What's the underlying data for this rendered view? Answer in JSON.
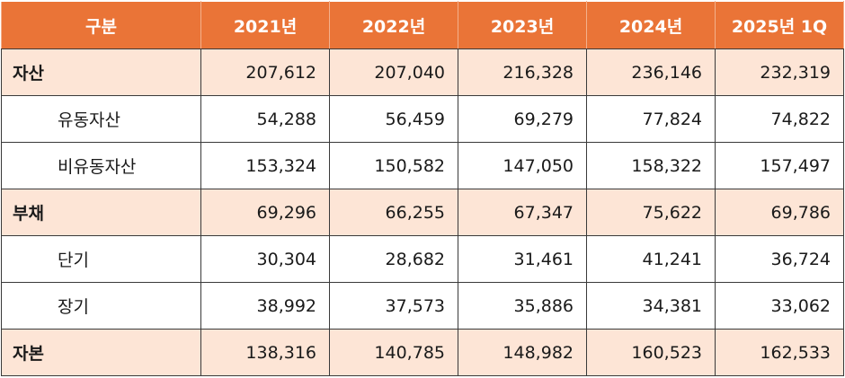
{
  "table": {
    "headers": [
      "구분",
      "2021년",
      "2022년",
      "2023년",
      "2024년",
      "2025년 1Q"
    ],
    "rows": [
      {
        "label": "자산",
        "type": "major",
        "values": [
          "207,612",
          "207,040",
          "216,328",
          "236,146",
          "232,319"
        ]
      },
      {
        "label": "유동자산",
        "type": "sub",
        "values": [
          "54,288",
          "56,459",
          "69,279",
          "77,824",
          "74,822"
        ]
      },
      {
        "label": "비유동자산",
        "type": "sub",
        "values": [
          "153,324",
          "150,582",
          "147,050",
          "158,322",
          "157,497"
        ]
      },
      {
        "label": "부채",
        "type": "major",
        "values": [
          "69,296",
          "66,255",
          "67,347",
          "75,622",
          "69,786"
        ]
      },
      {
        "label": "단기",
        "type": "sub",
        "values": [
          "30,304",
          "28,682",
          "31,461",
          "41,241",
          "36,724"
        ]
      },
      {
        "label": "장기",
        "type": "sub",
        "values": [
          "38,992",
          "37,573",
          "35,886",
          "34,381",
          "33,062"
        ]
      },
      {
        "label": "자본",
        "type": "major",
        "values": [
          "138,316",
          "140,785",
          "148,982",
          "160,523",
          "162,533"
        ]
      }
    ]
  },
  "colors": {
    "header_bg": "#ea7437",
    "header_text": "#ffffff",
    "major_row_bg": "#fde5d6",
    "sub_row_bg": "#ffffff"
  }
}
